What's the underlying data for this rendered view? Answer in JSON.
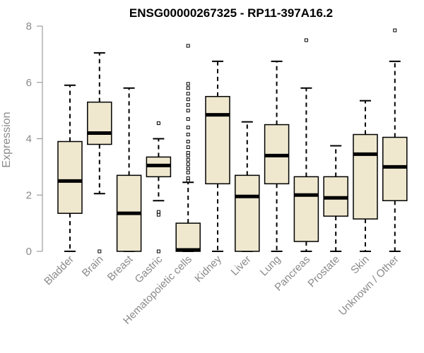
{
  "chart_data": {
    "type": "box",
    "title": "ENSG00000267325 - RP11-397A16.2",
    "xlabel": "",
    "ylabel": "Expression",
    "ylim": [
      0,
      8
    ],
    "yticks": [
      "0",
      "2",
      "4",
      "6",
      "8"
    ],
    "grid": false,
    "box_fill": "#efe8cf",
    "box_stroke": "#000000",
    "categories": [
      "Bladder",
      "Brain",
      "Breast",
      "Gastric",
      "Hematopoietic cells",
      "Kidney",
      "Liver",
      "Lung",
      "Pancreas",
      "Prostate",
      "Skin",
      "Unknown / Other"
    ],
    "boxes": [
      {
        "min": 0,
        "q1": 1.35,
        "median": 2.5,
        "q3": 3.9,
        "max": 5.9,
        "outliers": []
      },
      {
        "min": 2.05,
        "q1": 3.8,
        "median": 4.2,
        "q3": 5.3,
        "max": 7.05,
        "outliers": [
          0
        ]
      },
      {
        "min": 0,
        "q1": 0,
        "median": 1.35,
        "q3": 2.7,
        "max": 5.8,
        "outliers": []
      },
      {
        "min": 1.8,
        "q1": 2.65,
        "median": 3.05,
        "q3": 3.35,
        "max": 4.0,
        "outliers": [
          4.55,
          1.4,
          1.3,
          0
        ]
      },
      {
        "min": 0,
        "q1": 0,
        "median": 0.05,
        "q3": 1.0,
        "max": 2.45,
        "outliers": [
          7.3,
          5.95,
          5.8,
          5.6,
          5.4,
          5.2,
          5.0,
          4.7,
          4.4,
          4.15,
          3.9,
          3.7,
          3.5,
          3.4,
          3.25,
          3.1,
          2.95,
          2.8,
          2.6,
          2.5
        ]
      },
      {
        "min": 0,
        "q1": 2.4,
        "median": 4.85,
        "q3": 5.5,
        "max": 6.75,
        "outliers": []
      },
      {
        "min": 0,
        "q1": 0,
        "median": 1.95,
        "q3": 2.7,
        "max": 4.6,
        "outliers": []
      },
      {
        "min": 0,
        "q1": 2.4,
        "median": 3.4,
        "q3": 4.5,
        "max": 6.75,
        "outliers": []
      },
      {
        "min": 0,
        "q1": 0.35,
        "median": 2.0,
        "q3": 2.65,
        "max": 5.8,
        "outliers": [
          7.5
        ]
      },
      {
        "min": 0,
        "q1": 1.25,
        "median": 1.9,
        "q3": 2.65,
        "max": 3.75,
        "outliers": []
      },
      {
        "min": 0,
        "q1": 1.15,
        "median": 3.45,
        "q3": 4.15,
        "max": 5.35,
        "outliers": []
      },
      {
        "min": 0,
        "q1": 1.8,
        "median": 3.0,
        "q3": 4.05,
        "max": 6.75,
        "outliers": [
          7.85
        ]
      }
    ]
  }
}
